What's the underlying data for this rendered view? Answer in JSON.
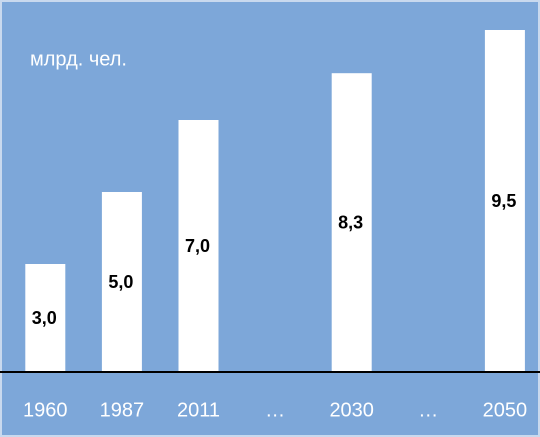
{
  "chart_data": {
    "type": "bar",
    "y_label": "млрд. чел.",
    "categories": [
      "1960",
      "1987",
      "2011",
      "…",
      "2030",
      "…",
      "2050"
    ],
    "values": [
      3.0,
      5.0,
      7.0,
      null,
      8.3,
      null,
      9.5
    ],
    "value_labels": [
      "3,0",
      "5,0",
      "7,0",
      null,
      "8,3",
      null,
      "9,5"
    ],
    "color": "#ffffff",
    "ylim": [
      0,
      10
    ]
  }
}
